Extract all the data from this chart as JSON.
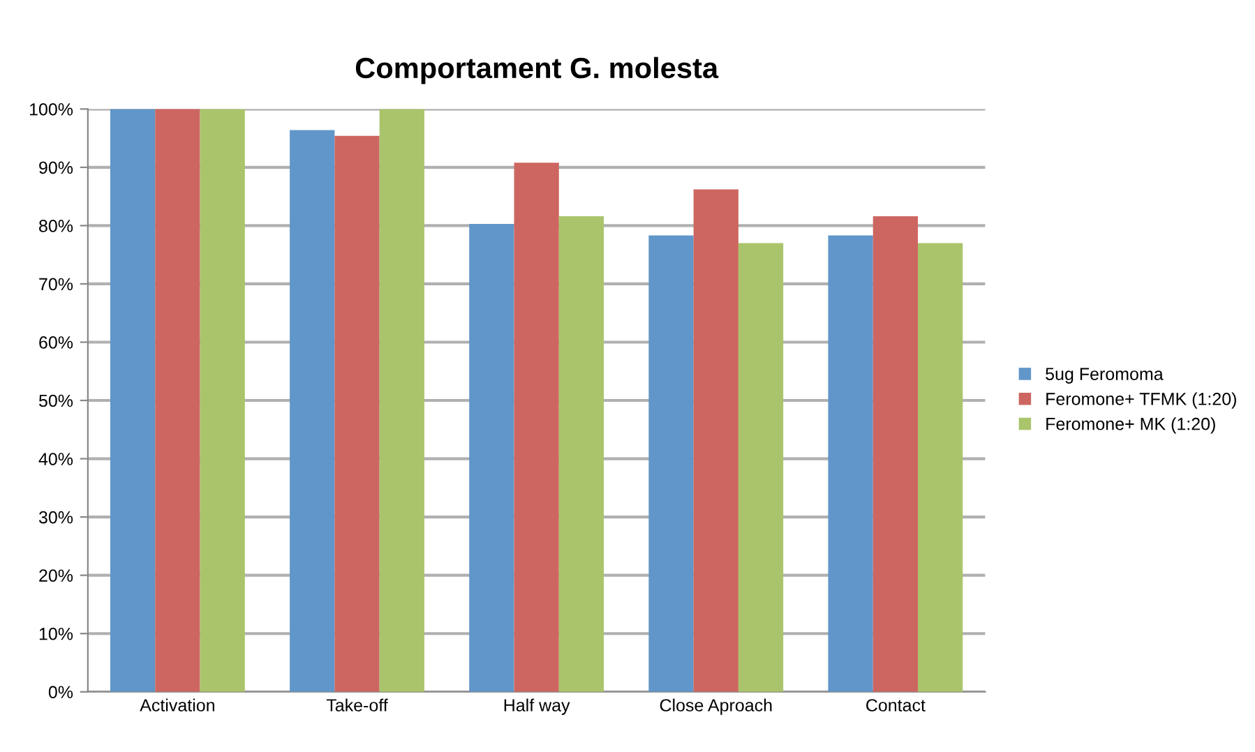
{
  "chart_data": {
    "type": "bar",
    "title": "Comportament G. molesta",
    "categories": [
      "Activation",
      "Take-off",
      "Half way",
      "Close Aproach",
      "Contact"
    ],
    "series": [
      {
        "name": "5ug Feromoma",
        "color": "#6096c9",
        "values": [
          100,
          96.4,
          80.3,
          78.3,
          78.3
        ]
      },
      {
        "name": "Feromone+ TFMK (1:20)",
        "color": "#cd6660",
        "values": [
          100,
          95.4,
          90.8,
          86.2,
          81.6
        ]
      },
      {
        "name": "Feromone+ MK (1:20)",
        "color": "#aac46c",
        "values": [
          100,
          100,
          81.6,
          77.0,
          77.0
        ]
      }
    ],
    "ylim": [
      0,
      100
    ],
    "yticks": [
      {
        "value": 0,
        "label": "0%"
      },
      {
        "value": 10,
        "label": "10%"
      },
      {
        "value": 20,
        "label": "20%"
      },
      {
        "value": 30,
        "label": "30%"
      },
      {
        "value": 40,
        "label": "40%"
      },
      {
        "value": 50,
        "label": "50%"
      },
      {
        "value": 60,
        "label": "60%"
      },
      {
        "value": 70,
        "label": "70%"
      },
      {
        "value": 80,
        "label": "80%"
      },
      {
        "value": 90,
        "label": "90%"
      },
      {
        "value": 100,
        "label": "100%"
      }
    ],
    "grid": "y",
    "legend": "right"
  }
}
